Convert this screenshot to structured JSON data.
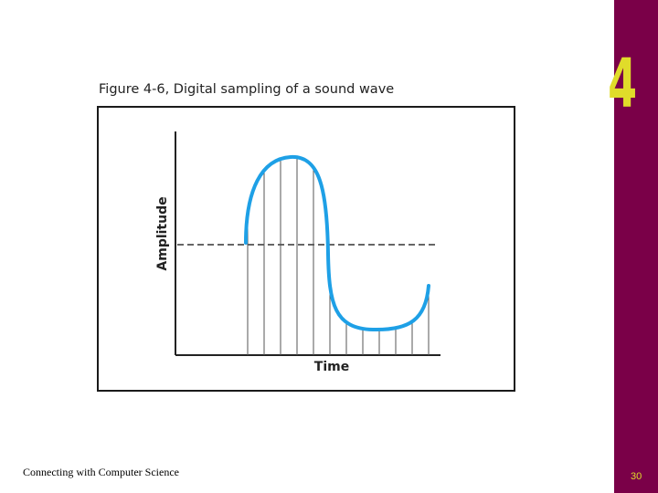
{
  "slide": {
    "chapter_number": "4",
    "footer_text": "Connecting with Computer Science",
    "page_number": "30",
    "sidebar_color": "#7a0048",
    "accent_color": "#e0dc2a"
  },
  "figure": {
    "title": "Figure 4-6, Digital sampling of a sound wave",
    "y_axis_label": "Amplitude",
    "x_axis_label": "Time",
    "wave_color": "#1ea0e6",
    "sample_line_count": 12
  }
}
